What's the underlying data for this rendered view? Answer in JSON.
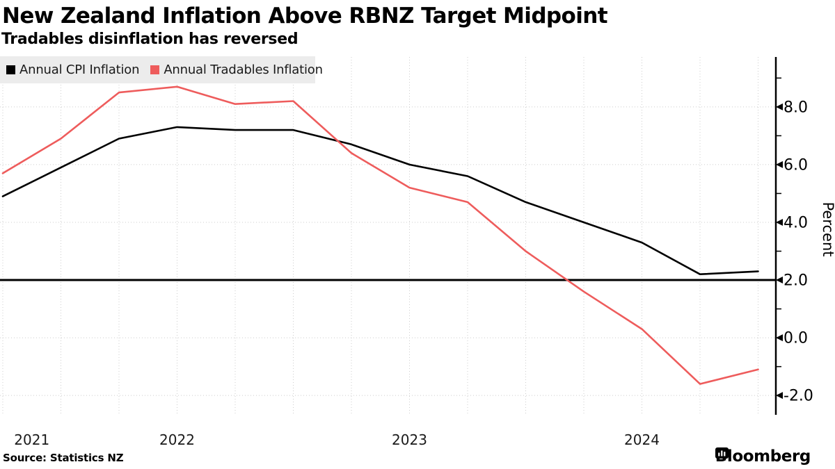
{
  "header": {
    "title": "New Zealand Inflation Above RBNZ Target Midpoint",
    "subtitle": "Tradables disinflation has reversed"
  },
  "legend": [
    {
      "label": "Annual CPI Inflation",
      "color": "#000000"
    },
    {
      "label": "Annual Tradables Inflation",
      "color": "#ee5c5c"
    }
  ],
  "footer": {
    "source": "Source: Statistics NZ",
    "brand": "Bloomberg"
  },
  "colors": {
    "cpi_line": "#000000",
    "tradables_line": "#ee5c5c",
    "grid": "#cccccc",
    "legend_bg": "#ececec",
    "axis": "#000000"
  },
  "chart_data": {
    "type": "line",
    "x": [
      "2021-Q3",
      "2021-Q4",
      "2022-Q1",
      "2022-Q2",
      "2022-Q3",
      "2022-Q4",
      "2023-Q1",
      "2023-Q2",
      "2023-Q3",
      "2023-Q4",
      "2024-Q1",
      "2024-Q2",
      "2024-Q3",
      "2024-Q4"
    ],
    "series": [
      {
        "name": "Annual CPI Inflation",
        "color": "#000000",
        "values": [
          4.9,
          5.9,
          6.9,
          7.3,
          7.2,
          7.2,
          6.7,
          6.0,
          5.6,
          4.7,
          4.0,
          3.3,
          2.2,
          2.3
        ]
      },
      {
        "name": "Annual Tradables Inflation",
        "color": "#ee5c5c",
        "values": [
          5.7,
          6.9,
          8.5,
          8.7,
          8.1,
          8.2,
          6.4,
          5.2,
          4.7,
          3.0,
          1.6,
          0.3,
          -1.6,
          -1.1
        ]
      }
    ],
    "reference_line_value": 2.0,
    "y_axis": {
      "label": "Percent",
      "side": "right",
      "major_ticks": [
        8.0,
        6.0,
        4.0,
        2.0,
        0.0,
        -2.0
      ],
      "minor_ticks": [
        9.0,
        7.0,
        5.0,
        3.0,
        1.0,
        -1.0
      ],
      "range": [
        -2.67,
        9.73
      ],
      "tick_decimals": 1
    },
    "x_axis": {
      "year_labels": [
        {
          "label": "2021",
          "index": 0.5
        },
        {
          "label": "2022",
          "index": 3
        },
        {
          "label": "2023",
          "index": 7
        },
        {
          "label": "2024",
          "index": 11
        }
      ]
    },
    "grid": {
      "vertical": "every-quarter",
      "horizontal": "every-major-tick",
      "style": "dotted"
    },
    "legend_position": "top-left"
  }
}
